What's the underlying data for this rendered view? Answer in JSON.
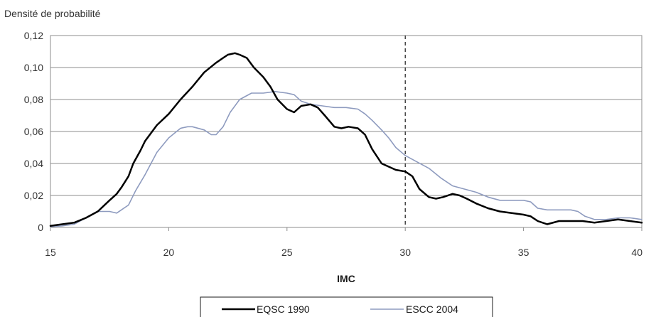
{
  "chart_data": {
    "type": "line",
    "ylabel": "Densité de probabilité",
    "xlabel": "IMC",
    "xlim": [
      15,
      40
    ],
    "ylim": [
      0,
      0.12
    ],
    "x_ticks": [
      "15",
      "20",
      "25",
      "30",
      "35",
      "40"
    ],
    "y_ticks": [
      "0",
      "0,02",
      "0,04",
      "0,06",
      "0,08",
      "0,10",
      "0,12"
    ],
    "grid": "horizontal",
    "reference_line_x": 30,
    "legend_position": "bottom",
    "series": [
      {
        "name": "EQSC 1990",
        "color": "#000000",
        "points": [
          [
            15,
            0.001
          ],
          [
            15.5,
            0.002
          ],
          [
            16,
            0.003
          ],
          [
            16.5,
            0.006
          ],
          [
            17,
            0.01
          ],
          [
            17.5,
            0.017
          ],
          [
            17.8,
            0.021
          ],
          [
            18,
            0.025
          ],
          [
            18.3,
            0.032
          ],
          [
            18.5,
            0.04
          ],
          [
            18.8,
            0.048
          ],
          [
            19,
            0.054
          ],
          [
            19.5,
            0.064
          ],
          [
            20,
            0.071
          ],
          [
            20.5,
            0.08
          ],
          [
            21,
            0.088
          ],
          [
            21.5,
            0.097
          ],
          [
            22,
            0.103
          ],
          [
            22.3,
            0.106
          ],
          [
            22.5,
            0.108
          ],
          [
            22.8,
            0.109
          ],
          [
            23,
            0.108
          ],
          [
            23.3,
            0.106
          ],
          [
            23.6,
            0.1
          ],
          [
            24,
            0.094
          ],
          [
            24.3,
            0.088
          ],
          [
            24.6,
            0.08
          ],
          [
            25,
            0.074
          ],
          [
            25.3,
            0.072
          ],
          [
            25.6,
            0.076
          ],
          [
            26,
            0.077
          ],
          [
            26.3,
            0.075
          ],
          [
            26.6,
            0.07
          ],
          [
            27,
            0.063
          ],
          [
            27.3,
            0.062
          ],
          [
            27.6,
            0.063
          ],
          [
            28,
            0.062
          ],
          [
            28.3,
            0.058
          ],
          [
            28.6,
            0.049
          ],
          [
            29,
            0.04
          ],
          [
            29.3,
            0.038
          ],
          [
            29.6,
            0.036
          ],
          [
            30,
            0.035
          ],
          [
            30.3,
            0.032
          ],
          [
            30.6,
            0.024
          ],
          [
            31,
            0.019
          ],
          [
            31.3,
            0.018
          ],
          [
            31.6,
            0.019
          ],
          [
            32,
            0.021
          ],
          [
            32.3,
            0.02
          ],
          [
            32.6,
            0.018
          ],
          [
            33,
            0.015
          ],
          [
            33.5,
            0.012
          ],
          [
            34,
            0.01
          ],
          [
            34.5,
            0.009
          ],
          [
            35,
            0.008
          ],
          [
            35.3,
            0.007
          ],
          [
            35.6,
            0.004
          ],
          [
            36,
            0.002
          ],
          [
            36.5,
            0.004
          ],
          [
            37,
            0.004
          ],
          [
            37.5,
            0.004
          ],
          [
            38,
            0.003
          ],
          [
            38.5,
            0.004
          ],
          [
            39,
            0.005
          ],
          [
            39.5,
            0.004
          ],
          [
            40,
            0.003
          ]
        ]
      },
      {
        "name": "ESCC 2004",
        "color": "#8e9bbf",
        "points": [
          [
            15,
            0.0005
          ],
          [
            15.5,
            0.001
          ],
          [
            16,
            0.002
          ],
          [
            16.5,
            0.006
          ],
          [
            17,
            0.01
          ],
          [
            17.5,
            0.01
          ],
          [
            17.8,
            0.009
          ],
          [
            18,
            0.011
          ],
          [
            18.3,
            0.014
          ],
          [
            18.6,
            0.023
          ],
          [
            19,
            0.033
          ],
          [
            19.5,
            0.047
          ],
          [
            20,
            0.056
          ],
          [
            20.5,
            0.062
          ],
          [
            20.8,
            0.063
          ],
          [
            21,
            0.063
          ],
          [
            21.5,
            0.061
          ],
          [
            21.8,
            0.058
          ],
          [
            22,
            0.058
          ],
          [
            22.3,
            0.063
          ],
          [
            22.6,
            0.072
          ],
          [
            23,
            0.08
          ],
          [
            23.5,
            0.084
          ],
          [
            24,
            0.084
          ],
          [
            24.5,
            0.085
          ],
          [
            25,
            0.084
          ],
          [
            25.3,
            0.083
          ],
          [
            25.6,
            0.079
          ],
          [
            26,
            0.077
          ],
          [
            26.5,
            0.076
          ],
          [
            27,
            0.075
          ],
          [
            27.5,
            0.075
          ],
          [
            28,
            0.074
          ],
          [
            28.3,
            0.071
          ],
          [
            28.6,
            0.067
          ],
          [
            29,
            0.061
          ],
          [
            29.3,
            0.056
          ],
          [
            29.6,
            0.05
          ],
          [
            30,
            0.045
          ],
          [
            30.5,
            0.041
          ],
          [
            31,
            0.037
          ],
          [
            31.5,
            0.031
          ],
          [
            32,
            0.026
          ],
          [
            32.5,
            0.024
          ],
          [
            33,
            0.022
          ],
          [
            33.5,
            0.019
          ],
          [
            34,
            0.017
          ],
          [
            34.5,
            0.017
          ],
          [
            35,
            0.017
          ],
          [
            35.3,
            0.016
          ],
          [
            35.6,
            0.012
          ],
          [
            36,
            0.011
          ],
          [
            36.5,
            0.011
          ],
          [
            37,
            0.011
          ],
          [
            37.3,
            0.01
          ],
          [
            37.6,
            0.007
          ],
          [
            38,
            0.005
          ],
          [
            38.5,
            0.005
          ],
          [
            39,
            0.006
          ],
          [
            39.5,
            0.006
          ],
          [
            40,
            0.005
          ]
        ]
      }
    ]
  }
}
